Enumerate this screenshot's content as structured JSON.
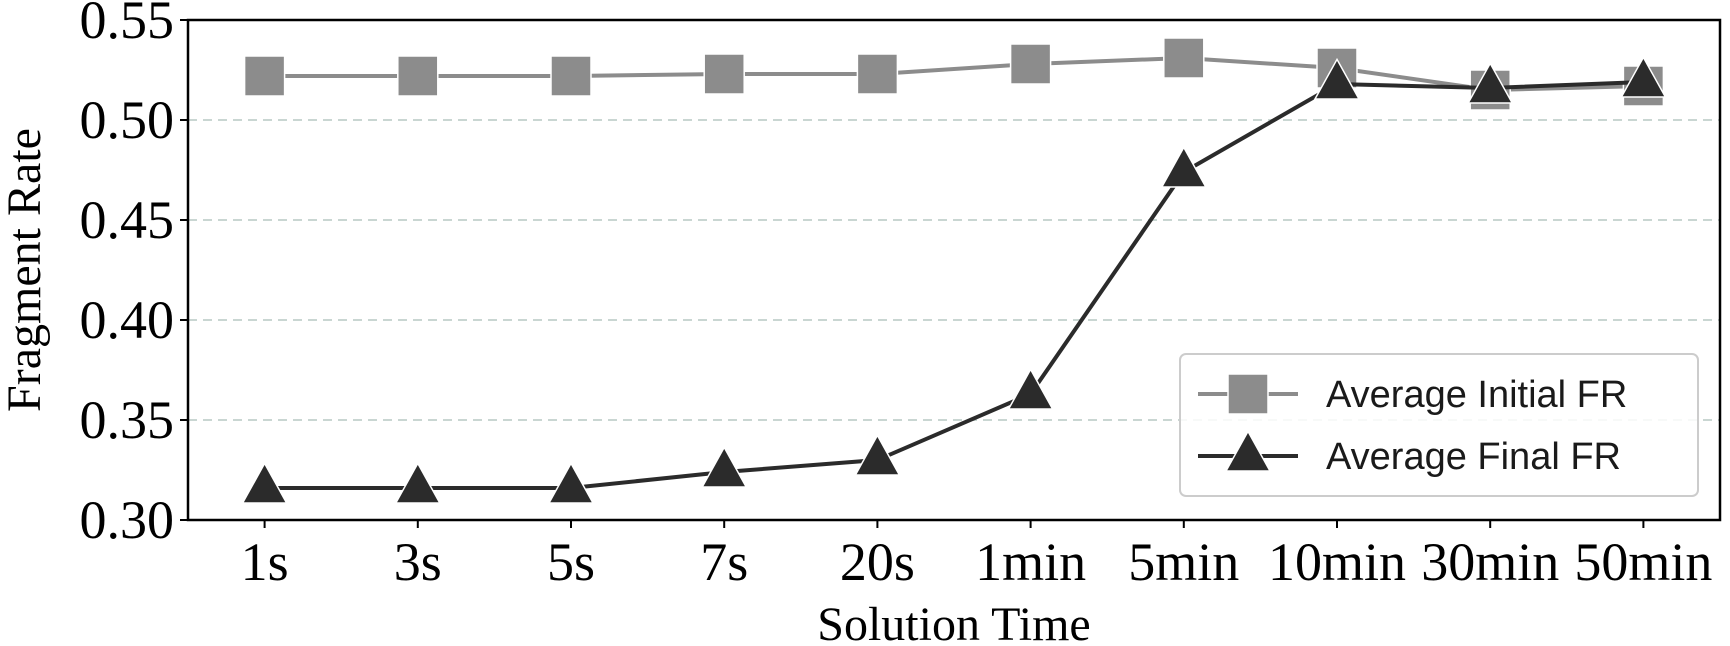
{
  "chart_data": {
    "type": "line",
    "title": "",
    "xlabel": "Solution Time",
    "ylabel": "Fragment Rate",
    "categories": [
      "1s",
      "3s",
      "5s",
      "7s",
      "20s",
      "1min",
      "5min",
      "10min",
      "30min",
      "50min"
    ],
    "ylim": [
      0.3,
      0.55
    ],
    "yticks": [
      "0.30",
      "0.35",
      "0.40",
      "0.45",
      "0.50",
      "0.55"
    ],
    "grid": "horizontal-dashed",
    "legend_position": "lower-right",
    "series": [
      {
        "name": "Average Initial FR",
        "marker": "square",
        "color": "#8c8c8c",
        "values": [
          0.522,
          0.522,
          0.522,
          0.523,
          0.523,
          0.528,
          0.531,
          0.526,
          0.515,
          0.517
        ]
      },
      {
        "name": "Average Final FR",
        "marker": "triangle",
        "color": "#2b2b2b",
        "values": [
          0.316,
          0.316,
          0.316,
          0.324,
          0.33,
          0.363,
          0.474,
          0.518,
          0.516,
          0.519
        ]
      }
    ]
  }
}
